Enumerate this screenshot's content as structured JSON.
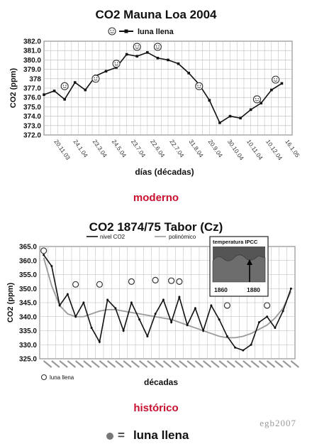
{
  "colors": {
    "red": "#c8102e",
    "grid": "#b8b8b8",
    "line": "#111111",
    "fit": "#9a9a9a"
  },
  "captions": {
    "modern": "moderno",
    "historic": "histórico"
  },
  "watermark": "egb2007",
  "key": {
    "symbol": "=",
    "label": "luna llena"
  },
  "inset": {
    "title": "temperatura IPCC",
    "x_labels": [
      "1860",
      "1880"
    ]
  },
  "chart_data": [
    {
      "type": "line",
      "title": "CO2 Mauna Loa 2004",
      "legend": [
        "luna llena"
      ],
      "xlabel": "días (décadas)",
      "ylabel": "CO2 (ppm)",
      "ylim": [
        372.0,
        382.0
      ],
      "yticks": [
        "382.0",
        "381.0",
        "380.0",
        "379.0",
        "378",
        "377.0",
        "376.0",
        "375.0",
        "374.0",
        "373.0",
        "372.0"
      ],
      "ytick_values": [
        382,
        381,
        380,
        379,
        378,
        377,
        376,
        375,
        374,
        373,
        372
      ],
      "xticks": [
        "20.11.03",
        "24.1.04",
        "23.3.04",
        "24.5.04",
        "23.7.04",
        "22.6.04",
        "22.7.04",
        "31.8.04",
        "20.9.04",
        "30.10.04",
        "10.11.04",
        "10.12.04",
        "16.1.05"
      ],
      "grid": true,
      "x": [
        0,
        0.5,
        1,
        1.5,
        2,
        2.5,
        3,
        3.5,
        4,
        4.5,
        5,
        5.5,
        6,
        6.5,
        7,
        7.5,
        8,
        8.5,
        9,
        9.5,
        10,
        10.5,
        11,
        11.5
      ],
      "values": [
        376.3,
        376.7,
        375.8,
        377.6,
        376.8,
        378.3,
        378.8,
        379.2,
        380.6,
        380.4,
        380.8,
        380.2,
        380.0,
        379.6,
        378.6,
        377.4,
        375.7,
        373.3,
        374.0,
        373.8,
        374.7,
        375.4,
        376.8,
        377.5
      ],
      "full_moon_x": [
        1,
        2.5,
        3.5,
        4.5,
        5.5,
        7.5,
        10.3,
        11.2
      ],
      "full_moon_y": [
        377.2,
        378.0,
        379.6,
        381.4,
        381.4,
        377.2,
        375.8,
        377.9
      ]
    },
    {
      "type": "line",
      "title": "CO2 1874/75 Tabor (Cz)",
      "legend": [
        "nivel CO2",
        "polinómico"
      ],
      "xlabel": "décadas",
      "ylabel": "CO2 (ppm)",
      "ylim": [
        325.0,
        365.0
      ],
      "yticks": [
        "365.0",
        "360.0",
        "355.0",
        "350.0",
        "345.0",
        "340.0",
        "335.0",
        "330.0",
        "325.0"
      ],
      "ytick_values": [
        365,
        360,
        355,
        350,
        345,
        340,
        335,
        330,
        325
      ],
      "grid": true,
      "x": [
        0,
        1,
        2,
        3,
        4,
        5,
        6,
        7,
        8,
        9,
        10,
        11,
        12,
        13,
        14,
        15,
        16,
        17,
        18,
        19,
        20,
        21,
        22,
        23,
        24,
        25,
        26,
        27,
        28,
        29,
        30,
        31
      ],
      "values": [
        362.0,
        358.0,
        344.0,
        348.0,
        340.0,
        345.0,
        336.0,
        331.0,
        346.0,
        343.0,
        335.0,
        345.0,
        339.0,
        333.0,
        341.0,
        346.0,
        338.0,
        347.0,
        337.0,
        343.0,
        335.0,
        344.0,
        339.0,
        333.0,
        329.0,
        328.0,
        330.0,
        338.0,
        340.0,
        336.0,
        342.0,
        350.0
      ],
      "trend": [
        361.0,
        351.0,
        344.0,
        341.0,
        340.0,
        340.0,
        341.0,
        342.0,
        342.5,
        342.5,
        342.0,
        341.5,
        341.0,
        340.5,
        340.0,
        339.5,
        339.0,
        338.0,
        337.0,
        336.0,
        335.0,
        334.0,
        333.0,
        332.5,
        332.5,
        333.0,
        334.0,
        335.5,
        337.0,
        339.5,
        343.0,
        349.0
      ],
      "full_moon_x": [
        0,
        4,
        7,
        11,
        14,
        16,
        17,
        23,
        28
      ],
      "full_moon_y": [
        363.5,
        351.5,
        351.5,
        352.5,
        353.0,
        352.8,
        352.5,
        344.0,
        344.0
      ],
      "full_moon_label": "luna llena"
    }
  ]
}
